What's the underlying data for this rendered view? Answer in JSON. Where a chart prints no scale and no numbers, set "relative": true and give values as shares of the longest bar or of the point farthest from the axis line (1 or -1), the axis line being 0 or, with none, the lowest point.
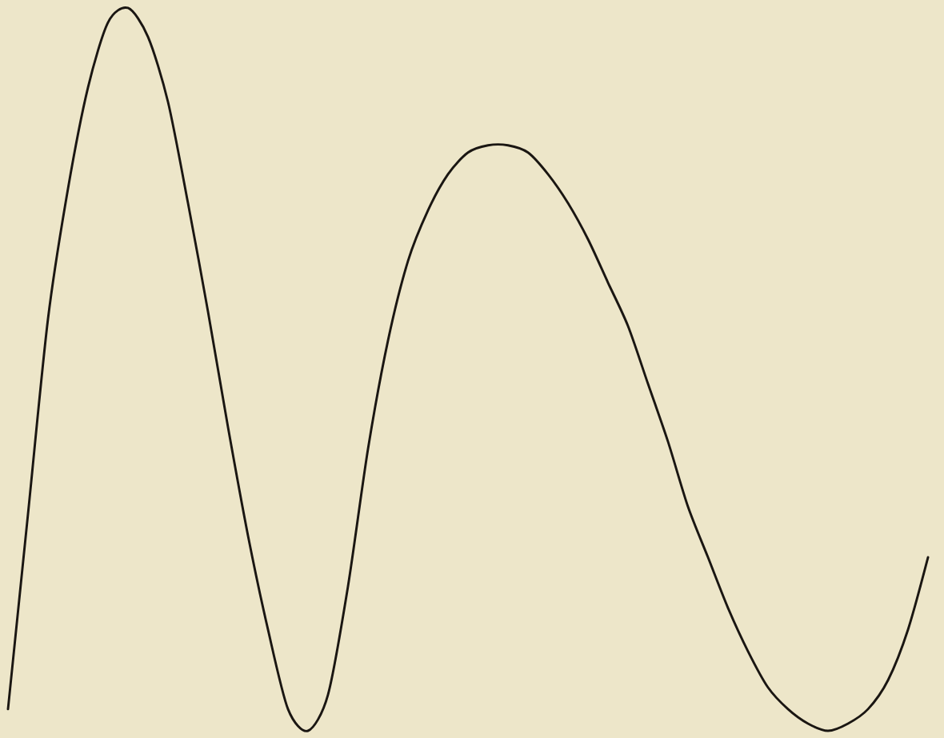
{
  "chart_data": {
    "type": "line",
    "relative": true,
    "color": "#1a1612",
    "categories": [
      null,
      null,
      null,
      null,
      null,
      null,
      null,
      null,
      null,
      null,
      null,
      null,
      null,
      null,
      null,
      null,
      null,
      null,
      null,
      null,
      null,
      null,
      null,
      null,
      null,
      null,
      null,
      null,
      null,
      null,
      null,
      null,
      null,
      null,
      null,
      null,
      null,
      null,
      null,
      null,
      null,
      null,
      null,
      null,
      null,
      null,
      null
    ],
    "values": [
      0.03,
      0.3,
      0.57,
      0.75,
      0.89,
      0.98,
      1.0,
      0.96,
      0.87,
      0.73,
      0.58,
      0.42,
      0.27,
      0.14,
      0.03,
      0.0,
      0.05,
      0.2,
      0.39,
      0.54,
      0.65,
      0.72,
      0.77,
      0.8,
      0.81,
      0.81,
      0.8,
      0.77,
      0.73,
      0.68,
      0.62,
      0.56,
      0.48,
      0.4,
      0.31,
      0.24,
      0.17,
      0.11,
      0.06,
      0.03,
      0.01,
      0.0,
      0.01,
      0.03,
      0.07,
      0.14,
      0.24
    ]
  }
}
